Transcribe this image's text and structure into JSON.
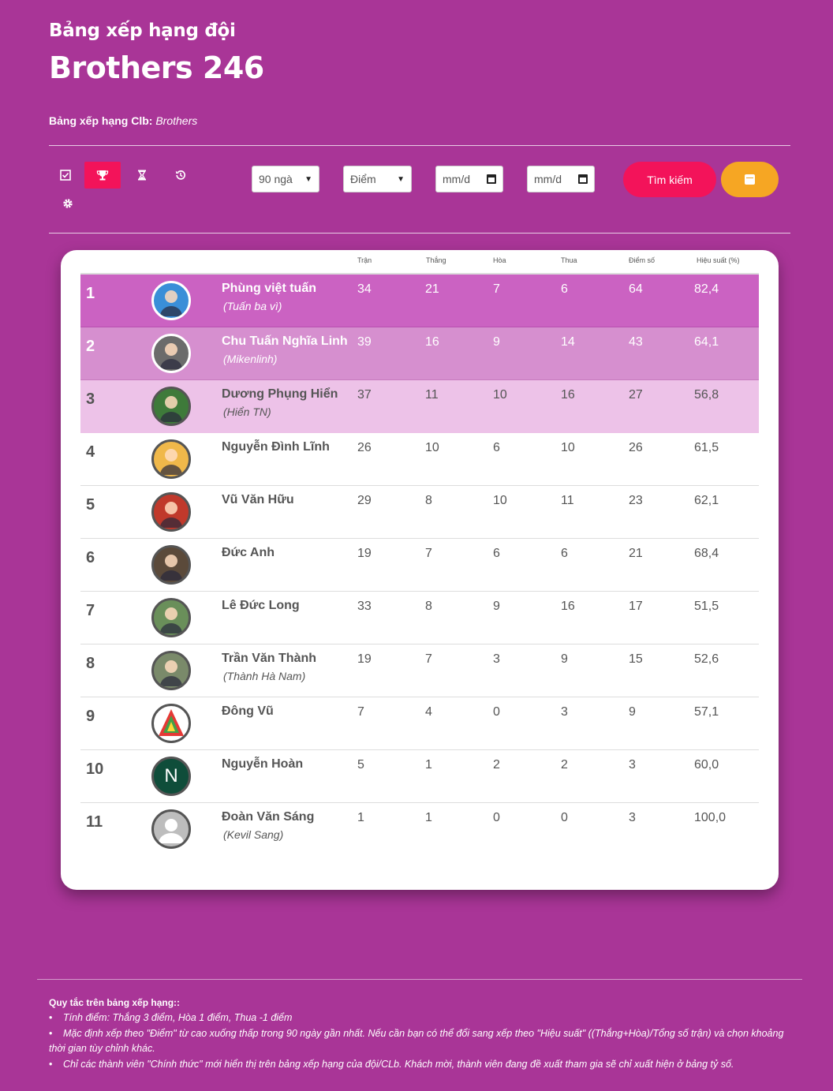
{
  "header": {
    "subtitle": "Bảng xếp hạng đội",
    "title": "Brothers 246",
    "club_label": "Bảng xếp hạng Clb:",
    "club_name": "Brothers"
  },
  "toolbar": {
    "icons": [
      "checkbox-icon",
      "trophy-icon",
      "hourglass-icon",
      "history-icon",
      "gear-icon"
    ],
    "period_select": "90 ngà",
    "sort_select": "Điểm",
    "date_from_placeholder": "mm/d",
    "date_to_placeholder": "mm/d",
    "search_label": "Tìm kiếm"
  },
  "table": {
    "columns": [
      "Trận",
      "Thắng",
      "Hòa",
      "Thua",
      "Điểm số",
      "Hiệu suất (%)"
    ],
    "rows": [
      {
        "rank": "1",
        "name": "Phùng việt tuấn",
        "nick": "(Tuấn ba vì)",
        "tran": "34",
        "thang": "21",
        "hoa": "7",
        "thua": "6",
        "diem": "64",
        "hieu": "82,4"
      },
      {
        "rank": "2",
        "name": "Chu Tuấn Nghĩa Linh",
        "nick": "(Mikenlinh)",
        "tran": "39",
        "thang": "16",
        "hoa": "9",
        "thua": "14",
        "diem": "43",
        "hieu": "64,1"
      },
      {
        "rank": "3",
        "name": "Dương Phụng Hiển",
        "nick": "(Hiển TN)",
        "tran": "37",
        "thang": "11",
        "hoa": "10",
        "thua": "16",
        "diem": "27",
        "hieu": "56,8"
      },
      {
        "rank": "4",
        "name": "Nguyễn Đình Lĩnh",
        "nick": "",
        "tran": "26",
        "thang": "10",
        "hoa": "6",
        "thua": "10",
        "diem": "26",
        "hieu": "61,5"
      },
      {
        "rank": "5",
        "name": "Vũ Văn Hữu",
        "nick": "",
        "tran": "29",
        "thang": "8",
        "hoa": "10",
        "thua": "11",
        "diem": "23",
        "hieu": "62,1"
      },
      {
        "rank": "6",
        "name": "Đức Anh",
        "nick": "",
        "tran": "19",
        "thang": "7",
        "hoa": "6",
        "thua": "6",
        "diem": "21",
        "hieu": "68,4"
      },
      {
        "rank": "7",
        "name": "Lê Đức Long",
        "nick": "",
        "tran": "33",
        "thang": "8",
        "hoa": "9",
        "thua": "16",
        "diem": "17",
        "hieu": "51,5"
      },
      {
        "rank": "8",
        "name": "Trần Văn Thành",
        "nick": "(Thành Hà Nam)",
        "tran": "19",
        "thang": "7",
        "hoa": "3",
        "thua": "9",
        "diem": "15",
        "hieu": "52,6"
      },
      {
        "rank": "9",
        "name": "Đông Vũ",
        "nick": "",
        "tran": "7",
        "thang": "4",
        "hoa": "0",
        "thua": "3",
        "diem": "9",
        "hieu": "57,1"
      },
      {
        "rank": "10",
        "name": "Nguyễn Hoàn",
        "nick": "",
        "tran": "5",
        "thang": "1",
        "hoa": "2",
        "thua": "2",
        "diem": "3",
        "hieu": "60,0"
      },
      {
        "rank": "11",
        "name": "Đoàn Văn Sáng",
        "nick": "(Kevil Sang)",
        "tran": "1",
        "thang": "1",
        "hoa": "0",
        "thua": "0",
        "diem": "3",
        "hieu": "100,0"
      }
    ]
  },
  "avatar_letter": "N",
  "rules": {
    "title": "Quy tắc trên bảng xếp hạng::",
    "items": [
      "Tính điểm: Thắng 3 điểm, Hòa 1 điểm, Thua -1 điểm",
      "Mặc định xếp theo \"Điểm\" từ cao xuống thấp trong 90 ngày gần nhất. Nếu cần bạn có thể đổi sang xếp theo \"Hiệu suất\" ((Thắng+Hòa)/Tổng số trận) và chọn khoảng thời gian tùy chỉnh khác.",
      "Chỉ các thành viên \"Chính thức\" mới hiển thị trên bảng xếp hạng của đội/CLb. Khách mời, thành viên đang đề xuất tham gia sẽ chỉ xuất hiện ở bảng tỷ số."
    ]
  },
  "colors": {
    "background": "#a93597",
    "accent": "#f3135a",
    "calendar_button": "#f6a623",
    "rank1_row": "#cb62c2",
    "rank2_row": "#d68fcf",
    "rank3_row": "#edc2e8"
  }
}
